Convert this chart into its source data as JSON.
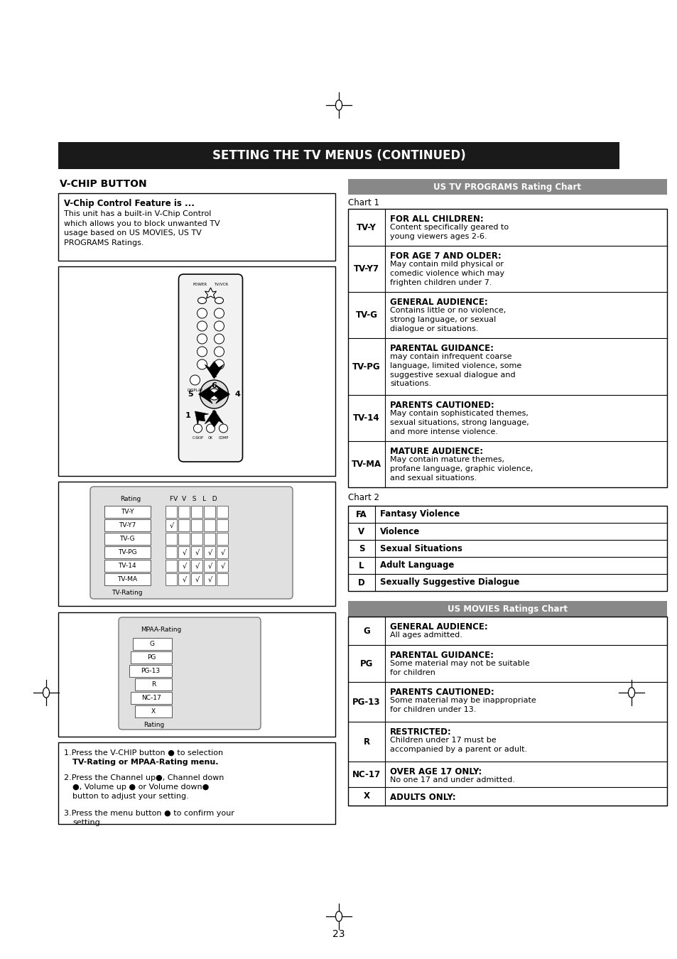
{
  "page_bg": "#ffffff",
  "main_title": "SETTING THE TV MENUS (CONTINUED)",
  "main_title_bg": "#1a1a1a",
  "main_title_color": "#ffffff",
  "section_title_left": "V-CHIP BUTTON",
  "vchip_box_title": "V-Chip Control Feature is ...",
  "vchip_box_body": "This unit has a built-in V-Chip Control\nwhich allows you to block unwanted TV\nusage based on US MOVIES, US TV\nPROGRAMS Ratings.",
  "chart_header1": "US TV PROGRAMS Rating Chart",
  "chart_header1_bg": "#888888",
  "chart_header1_color": "#ffffff",
  "chart1_label": "Chart 1",
  "tv_ratings": [
    {
      "code": "TV-Y",
      "bold": "FOR ALL CHILDREN:",
      "desc": "Content specifically geared to\nyoung viewers ages 2-6."
    },
    {
      "code": "TV-Y7",
      "bold": "FOR AGE 7 AND OLDER:",
      "desc": "May contain mild physical or\ncomedic violence which may\nfrighten children under 7."
    },
    {
      "code": "TV-G",
      "bold": "GENERAL AUDIENCE:",
      "desc": "Contains little or no violence,\nstrong language, or sexual\ndialogue or situations."
    },
    {
      "code": "TV-PG",
      "bold": "PARENTAL GUIDANCE:",
      "desc": "may contain infrequent coarse\nlanguage, limited violence, some\nsuggestive sexual dialogue and\nsituations."
    },
    {
      "code": "TV-14",
      "bold": "PARENTS CAUTIONED:",
      "desc": "May contain sophisticated themes,\nsexual situations, strong language,\nand more intense violence."
    },
    {
      "code": "TV-MA",
      "bold": "MATURE AUDIENCE:",
      "desc": "May contain mature themes,\nprofane language, graphic violence,\nand sexual situations."
    }
  ],
  "chart2_label": "Chart 2",
  "chart2_rows": [
    [
      "FA",
      "Fantasy Violence"
    ],
    [
      "V",
      "Violence"
    ],
    [
      "S",
      "Sexual Situations"
    ],
    [
      "L",
      "Adult Language"
    ],
    [
      "D",
      "Sexually Suggestive Dialogue"
    ]
  ],
  "chart_header2": "US MOVIES Ratings Chart",
  "chart_header2_bg": "#888888",
  "chart_header2_color": "#ffffff",
  "movie_ratings": [
    {
      "code": "G",
      "bold": "GENERAL AUDIENCE:",
      "desc": "All ages admitted."
    },
    {
      "code": "PG",
      "bold": "PARENTAL GUIDANCE:",
      "desc": "Some material may not be suitable\nfor children"
    },
    {
      "code": "PG-13",
      "bold": "PARENTS CAUTIONED:",
      "desc": "Some material may be inappropriate\nfor children under 13."
    },
    {
      "code": "R",
      "bold": "RESTRICTED:",
      "desc": "Children under 17 must be\naccompanied by a parent or adult."
    },
    {
      "code": "NC-17",
      "bold": "OVER AGE 17 ONLY:",
      "desc": "No one 17 and under admitted."
    },
    {
      "code": "X",
      "bold": "ADULTS ONLY:",
      "desc": ""
    }
  ],
  "instructions": [
    [
      "1.Press the V-CHIP button ",
      "●",
      " to selection\n  ",
      "TV-Rating",
      " or ",
      "MPAA-Rating",
      " menu."
    ],
    [
      "2.Press the Channel up",
      "●",
      ", Channel down\n  ",
      "●",
      ", Volume up ",
      "●",
      " or Volume down",
      "●",
      "\n  button to adjust your setting."
    ],
    [
      "3.Press the menu button ",
      "●",
      " to confirm your\n  setting."
    ]
  ],
  "page_number": "23"
}
